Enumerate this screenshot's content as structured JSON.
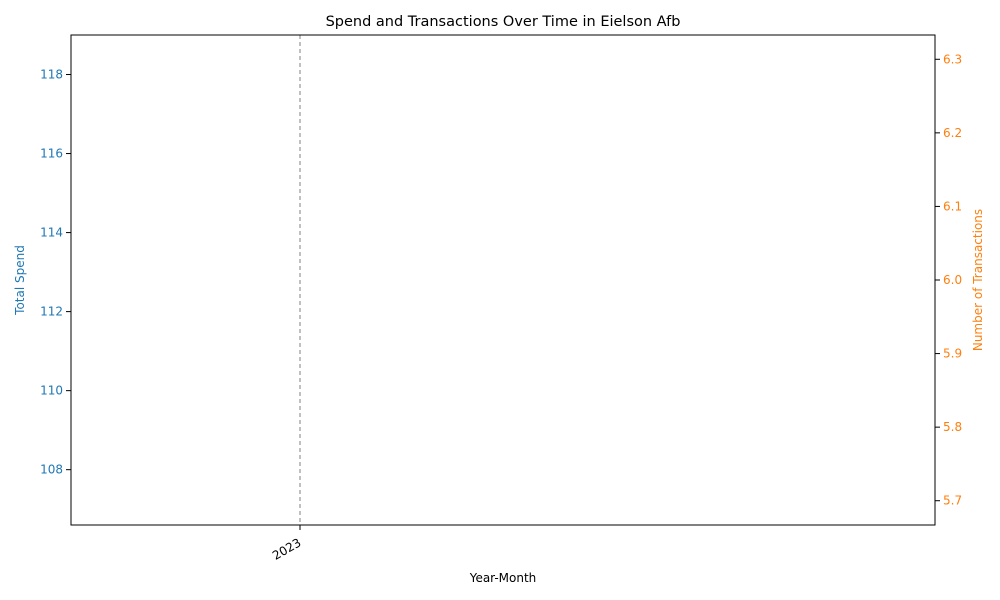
{
  "chart_data": {
    "type": "line",
    "title": "Spend and Transactions Over Time in Eielson Afb",
    "xlabel": "Year-Month",
    "x_ticks": [
      "2023"
    ],
    "y_left": {
      "label": "Total Spend",
      "color": "#1f77b4",
      "ticks": [
        108,
        110,
        112,
        114,
        116,
        118
      ],
      "range": [
        106.6,
        119.0
      ]
    },
    "y_right": {
      "label": "Number of Transactions",
      "color": "#ff7f0e",
      "ticks": [
        5.7,
        5.8,
        5.9,
        6.0,
        6.1,
        6.2,
        6.3
      ],
      "range": [
        5.667,
        6.333
      ]
    },
    "series": [],
    "annotations": [
      {
        "type": "vertical-dashed-line",
        "x": "2023",
        "color": "#808080"
      }
    ],
    "grid": false
  }
}
